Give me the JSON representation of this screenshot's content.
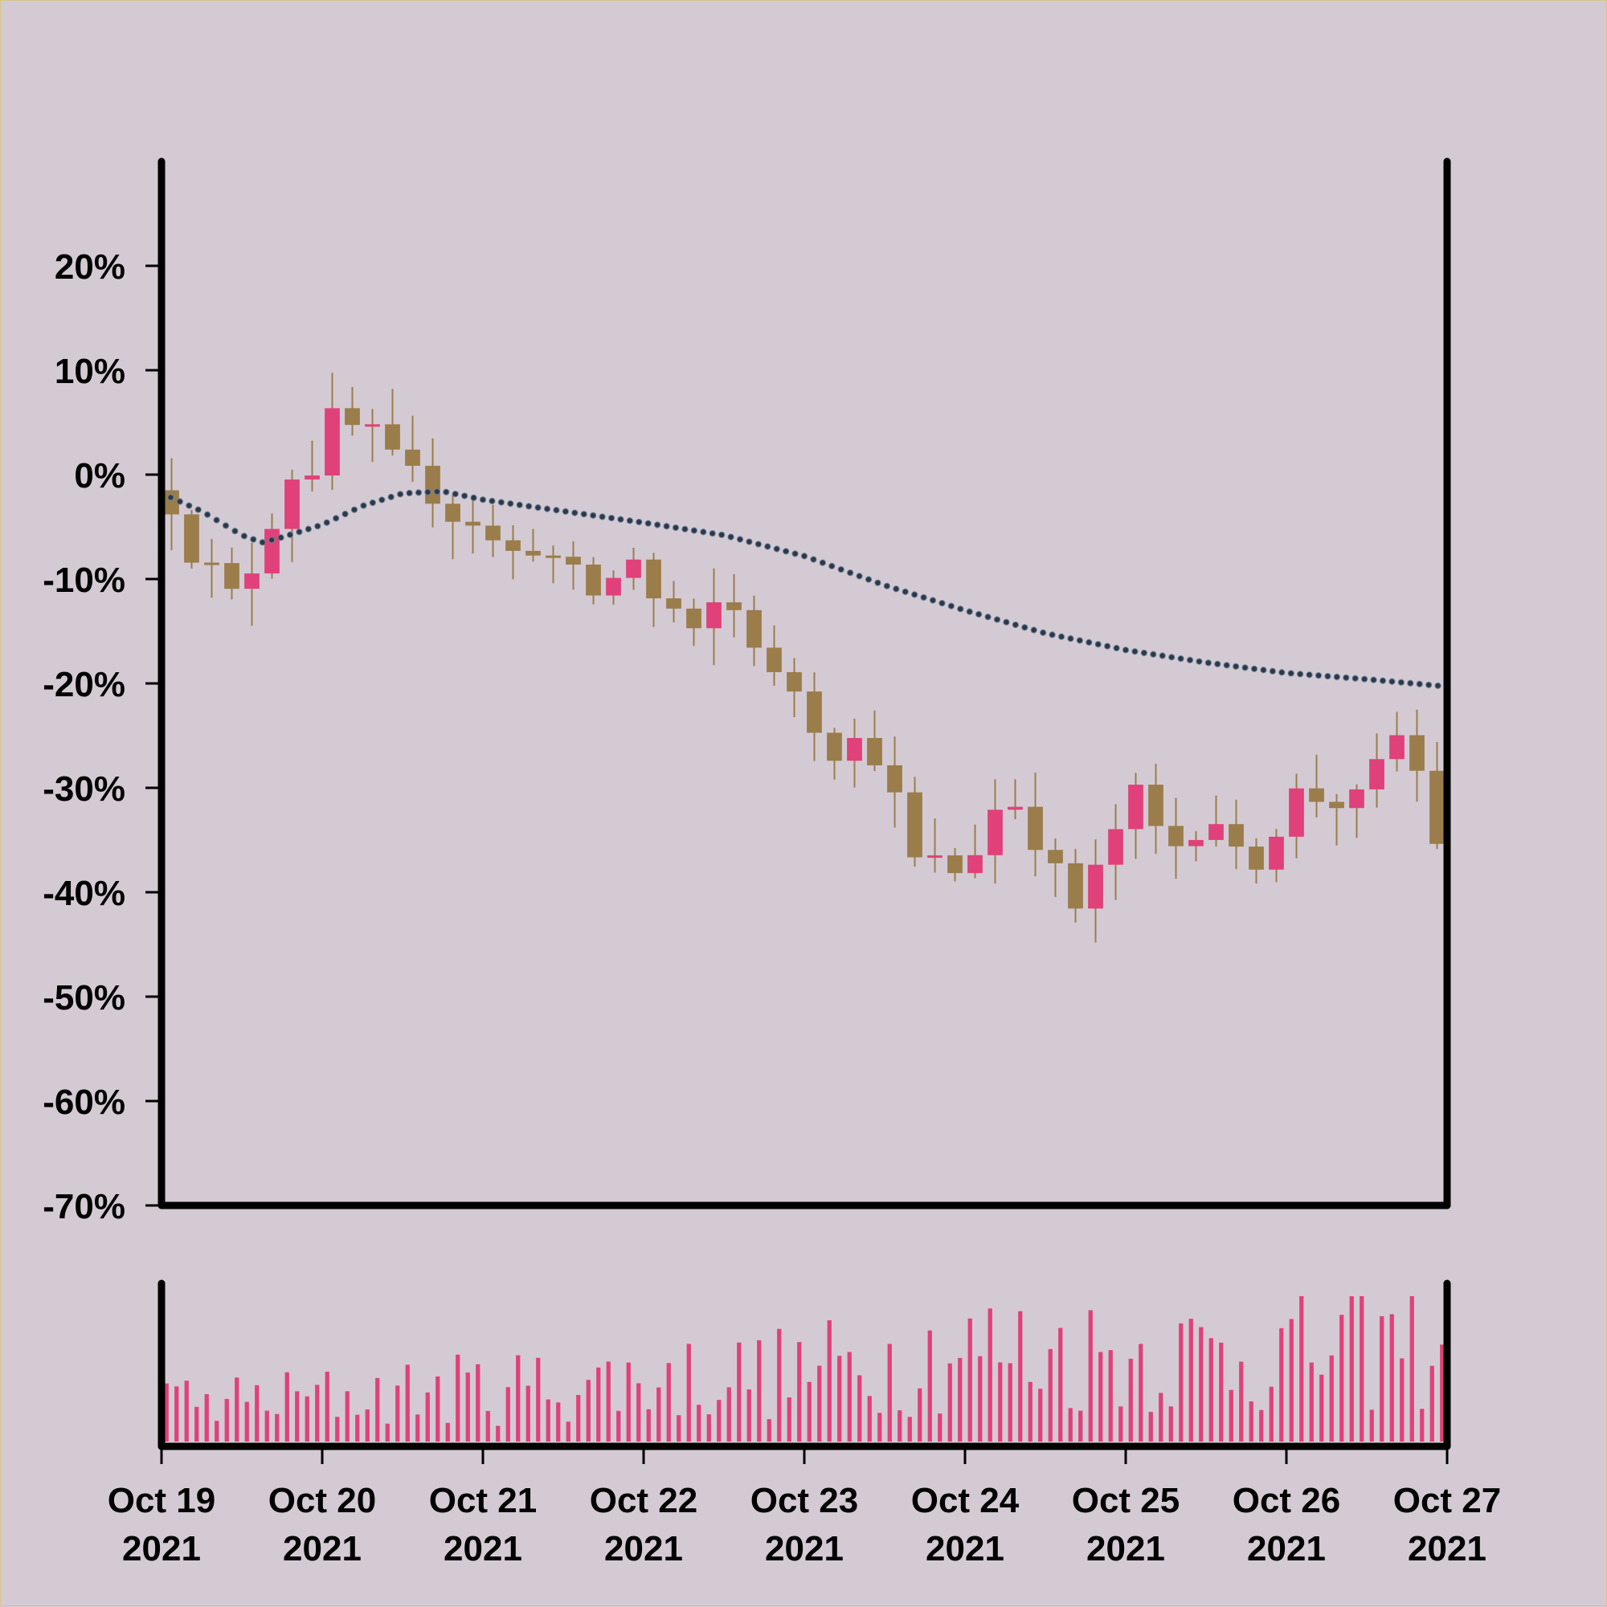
{
  "chart_data": {
    "type": "candlestick",
    "title": "",
    "xlabel": "",
    "ylabel": "",
    "x_range": [
      "2021-10-19",
      "2021-10-27"
    ],
    "x_ticks": [
      {
        "date": "2021-10-19",
        "line1": "Oct 19",
        "line2": "2021"
      },
      {
        "date": "2021-10-20",
        "line1": "Oct 20",
        "line2": "2021"
      },
      {
        "date": "2021-10-21",
        "line1": "Oct 21",
        "line2": "2021"
      },
      {
        "date": "2021-10-22",
        "line1": "Oct 22",
        "line2": "2021"
      },
      {
        "date": "2021-10-23",
        "line1": "Oct 23",
        "line2": "2021"
      },
      {
        "date": "2021-10-24",
        "line1": "Oct 24",
        "line2": "2021"
      },
      {
        "date": "2021-10-25",
        "line1": "Oct 25",
        "line2": "2021"
      },
      {
        "date": "2021-10-26",
        "line1": "Oct 26",
        "line2": "2021"
      },
      {
        "date": "2021-10-27",
        "line1": "Oct 27",
        "line2": "2021"
      }
    ],
    "y_ticks": [
      {
        "value": 20,
        "label": "20%"
      },
      {
        "value": 10,
        "label": "10%"
      },
      {
        "value": 0,
        "label": "0%"
      },
      {
        "value": -10,
        "label": "-10%"
      },
      {
        "value": -20,
        "label": "-20%"
      },
      {
        "value": -30,
        "label": "-30%"
      },
      {
        "value": -40,
        "label": "-40%"
      },
      {
        "value": -50,
        "label": "-50%"
      },
      {
        "value": -60,
        "label": "-60%"
      },
      {
        "value": -70,
        "label": "-70%"
      }
    ],
    "ylim": [
      -70,
      30
    ],
    "grid": false,
    "colors": {
      "background": "#d4cad4",
      "up": "#e0417a",
      "down": "#9a7d4a",
      "moving_average": "#2b3a4a",
      "volume": "#e0417a",
      "axis": "#000000"
    },
    "price_path_percent": [
      [
        "2021-10-19T00:00",
        -1.5
      ],
      [
        "2021-10-19T03:00",
        -3.0
      ],
      [
        "2021-10-19T06:00",
        -7.5
      ],
      [
        "2021-10-19T09:00",
        -9.0
      ],
      [
        "2021-10-19T12:00",
        -11.5
      ],
      [
        "2021-10-19T15:00",
        -9.0
      ],
      [
        "2021-10-19T18:00",
        -4.5
      ],
      [
        "2021-10-19T21:00",
        0.0
      ],
      [
        "2021-10-20T00:00",
        0.5
      ],
      [
        "2021-10-20T03:00",
        5.5
      ],
      [
        "2021-10-20T06:00",
        4.5
      ],
      [
        "2021-10-20T09:00",
        4.0
      ],
      [
        "2021-10-20T12:00",
        1.5
      ],
      [
        "2021-10-20T15:00",
        0.0
      ],
      [
        "2021-10-20T18:00",
        -2.0
      ],
      [
        "2021-10-20T21:00",
        -4.0
      ],
      [
        "2021-10-21T00:00",
        -4.5
      ],
      [
        "2021-10-21T03:00",
        -6.5
      ],
      [
        "2021-10-21T06:00",
        -7.5
      ],
      [
        "2021-10-21T09:00",
        -7.0
      ],
      [
        "2021-10-21T12:00",
        -8.0
      ],
      [
        "2021-10-21T15:00",
        -9.5
      ],
      [
        "2021-10-21T18:00",
        -11.5
      ],
      [
        "2021-10-21T21:00",
        -10.0
      ],
      [
        "2021-10-22T00:00",
        -8.0
      ],
      [
        "2021-10-22T03:00",
        -12.0
      ],
      [
        "2021-10-22T06:00",
        -13.0
      ],
      [
        "2021-10-22T09:00",
        -15.5
      ],
      [
        "2021-10-22T12:00",
        -12.5
      ],
      [
        "2021-10-22T15:00",
        -13.0
      ],
      [
        "2021-10-22T18:00",
        -16.0
      ],
      [
        "2021-10-22T21:00",
        -19.5
      ],
      [
        "2021-10-23T00:00",
        -20.5
      ],
      [
        "2021-10-23T03:00",
        -24.0
      ],
      [
        "2021-10-23T06:00",
        -26.5
      ],
      [
        "2021-10-23T09:00",
        -25.5
      ],
      [
        "2021-10-23T12:00",
        -27.0
      ],
      [
        "2021-10-23T15:00",
        -31.0
      ],
      [
        "2021-10-23T18:00",
        -37.0
      ],
      [
        "2021-10-23T21:00",
        -37.0
      ],
      [
        "2021-10-24T00:00",
        -38.0
      ],
      [
        "2021-10-24T03:00",
        -36.0
      ],
      [
        "2021-10-24T06:00",
        -32.0
      ],
      [
        "2021-10-24T09:00",
        -31.5
      ],
      [
        "2021-10-24T12:00",
        -35.0
      ],
      [
        "2021-10-24T15:00",
        -38.0
      ],
      [
        "2021-10-24T18:00",
        -41.5
      ],
      [
        "2021-10-24T21:00",
        -38.0
      ],
      [
        "2021-10-25T00:00",
        -34.0
      ],
      [
        "2021-10-25T03:00",
        -30.5
      ],
      [
        "2021-10-25T06:00",
        -34.0
      ],
      [
        "2021-10-25T09:00",
        -35.5
      ],
      [
        "2021-10-25T12:00",
        -34.0
      ],
      [
        "2021-10-25T15:00",
        -33.0
      ],
      [
        "2021-10-25T18:00",
        -36.5
      ],
      [
        "2021-10-25T21:00",
        -37.0
      ],
      [
        "2021-10-26T00:00",
        -34.0
      ],
      [
        "2021-10-26T03:00",
        -30.5
      ],
      [
        "2021-10-26T06:00",
        -31.0
      ],
      [
        "2021-10-26T09:00",
        -31.5
      ],
      [
        "2021-10-26T12:00",
        -31.0
      ],
      [
        "2021-10-26T15:00",
        -28.0
      ],
      [
        "2021-10-26T18:00",
        -25.0
      ],
      [
        "2021-10-26T21:00",
        -28.5
      ],
      [
        "2021-10-27T00:00",
        -35.0
      ]
    ],
    "moving_average_percent": [
      [
        "2021-10-19T00:00",
        -1.8
      ],
      [
        "2021-10-19T06:00",
        -3.5
      ],
      [
        "2021-10-19T12:00",
        -5.8
      ],
      [
        "2021-10-19T15:00",
        -6.5
      ],
      [
        "2021-10-19T18:00",
        -6.0
      ],
      [
        "2021-10-20T00:00",
        -4.8
      ],
      [
        "2021-10-20T06:00",
        -3.0
      ],
      [
        "2021-10-20T12:00",
        -1.8
      ],
      [
        "2021-10-20T18:00",
        -1.6
      ],
      [
        "2021-10-21T00:00",
        -2.4
      ],
      [
        "2021-10-21T12:00",
        -3.5
      ],
      [
        "2021-10-22T00:00",
        -4.6
      ],
      [
        "2021-10-22T12:00",
        -5.8
      ],
      [
        "2021-10-23T00:00",
        -7.8
      ],
      [
        "2021-10-23T12:00",
        -10.6
      ],
      [
        "2021-10-24T00:00",
        -13.0
      ],
      [
        "2021-10-24T12:00",
        -15.2
      ],
      [
        "2021-10-25T00:00",
        -16.8
      ],
      [
        "2021-10-25T12:00",
        -18.0
      ],
      [
        "2021-10-26T00:00",
        -19.0
      ],
      [
        "2021-10-26T12:00",
        -19.6
      ],
      [
        "2021-10-27T00:00",
        -20.3
      ]
    ],
    "volume_path_relative": [
      [
        "2021-10-19T00:00",
        0.3
      ],
      [
        "2021-10-20T00:00",
        0.35
      ],
      [
        "2021-10-21T00:00",
        0.42
      ],
      [
        "2021-10-22T00:00",
        0.48
      ],
      [
        "2021-10-23T00:00",
        0.55
      ],
      [
        "2021-10-24T00:00",
        0.72
      ],
      [
        "2021-10-25T00:00",
        0.68
      ],
      [
        "2021-10-26T00:00",
        0.7
      ],
      [
        "2021-10-27T00:00",
        0.78
      ]
    ]
  }
}
